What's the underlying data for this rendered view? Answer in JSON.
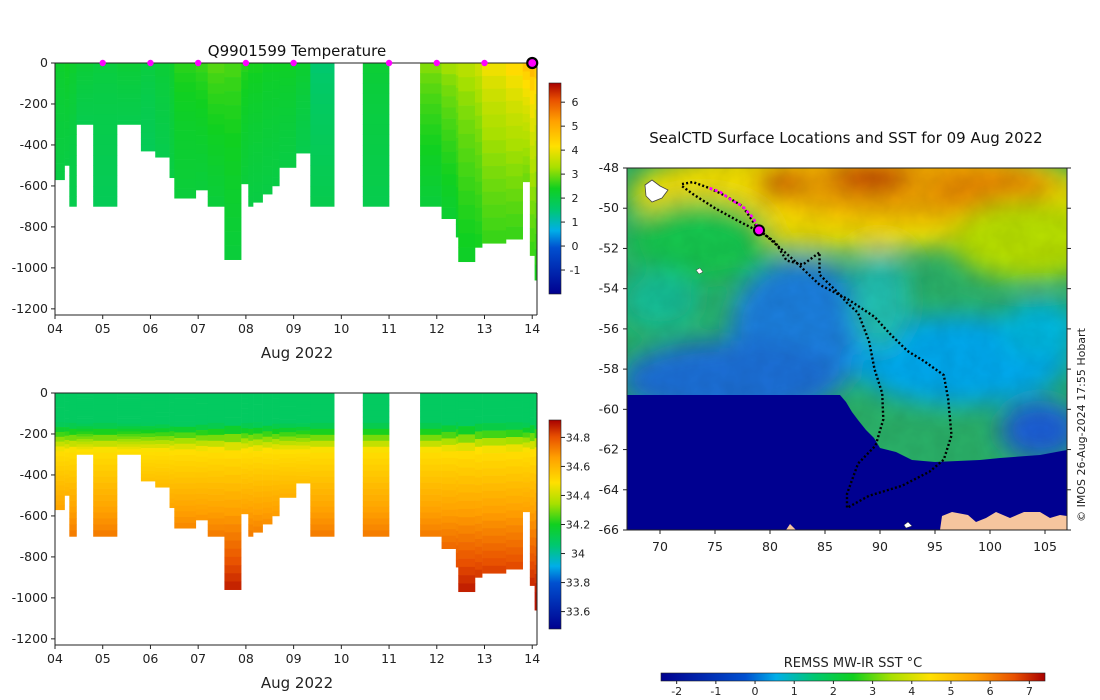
{
  "temperature_panel": {
    "title": "Q9901599  Temperature",
    "xlabel": "Aug 2022",
    "xticks": [
      "04",
      "05",
      "06",
      "07",
      "08",
      "09",
      "10",
      "11",
      "12",
      "13",
      "14"
    ],
    "yticks": [
      "0",
      "-200",
      "-400",
      "-600",
      "-800",
      "-1000",
      "-1200"
    ],
    "colorbar_ticks": [
      "6",
      "5",
      "4",
      "3",
      "2",
      "1",
      "0",
      "-1"
    ]
  },
  "salinity_panel": {
    "xlabel": "Aug 2022",
    "xticks": [
      "04",
      "05",
      "06",
      "07",
      "08",
      "09",
      "10",
      "11",
      "12",
      "13",
      "14"
    ],
    "yticks": [
      "0",
      "-200",
      "-400",
      "-600",
      "-800",
      "-1000",
      "-1200"
    ],
    "colorbar_ticks": [
      "34.8",
      "34.6",
      "34.4",
      "34.2",
      "34",
      "33.8",
      "33.6"
    ]
  },
  "map_panel": {
    "title": "SealCTD Surface Locations and SST for 09 Aug 2022",
    "xticks": [
      "70",
      "75",
      "80",
      "85",
      "90",
      "95",
      "100",
      "105"
    ],
    "yticks": [
      "-48",
      "-50",
      "-52",
      "-54",
      "-56",
      "-58",
      "-60",
      "-62",
      "-64",
      "-66"
    ],
    "colorbar_label": "REMSS MW-IR SST °C",
    "colorbar_ticks": [
      "-2",
      "-1",
      "0",
      "1",
      "2",
      "3",
      "4",
      "5",
      "6",
      "7"
    ],
    "copyright": "© IMOS 26-Aug-2024 17:55 Hobart"
  },
  "chart_data": [
    {
      "type": "heatmap",
      "title": "Q9901599  Temperature",
      "xlabel": "Aug 2022",
      "ylabel": "",
      "xlim": [
        4,
        14.1
      ],
      "ylim": [
        -1230,
        0
      ],
      "colorbar_range": [
        -2,
        6.8
      ],
      "surface_markers_days": [
        5,
        6,
        7,
        8,
        9,
        11,
        12,
        13
      ],
      "current_marker_day": 14,
      "profiles": [
        {
          "t0": 4.0,
          "t1": 4.2,
          "depth": 570,
          "surf": 2.3,
          "deep": 2.0
        },
        {
          "t0": 4.2,
          "t1": 4.3,
          "depth": 500,
          "surf": 2.4,
          "deep": 2.0
        },
        {
          "t0": 4.3,
          "t1": 4.45,
          "depth": 700,
          "surf": 2.3,
          "deep": 1.9
        },
        {
          "t0": 4.45,
          "t1": 4.8,
          "depth": 300,
          "surf": 2.2,
          "deep": 1.9
        },
        {
          "t0": 4.8,
          "t1": 5.3,
          "depth": 700,
          "surf": 2.1,
          "deep": 1.8
        },
        {
          "t0": 5.3,
          "t1": 5.8,
          "depth": 300,
          "surf": 2.2,
          "deep": 1.9
        },
        {
          "t0": 5.8,
          "t1": 6.1,
          "depth": 430,
          "surf": 2.1,
          "deep": 1.8
        },
        {
          "t0": 6.1,
          "t1": 6.4,
          "depth": 460,
          "surf": 2.2,
          "deep": 1.9
        },
        {
          "t0": 6.4,
          "t1": 6.5,
          "depth": 560,
          "surf": 2.3,
          "deep": 2.0
        },
        {
          "t0": 6.5,
          "t1": 6.95,
          "depth": 660,
          "surf": 2.6,
          "deep": 2.1
        },
        {
          "t0": 6.95,
          "t1": 7.2,
          "depth": 620,
          "surf": 2.7,
          "deep": 2.1
        },
        {
          "t0": 7.2,
          "t1": 7.55,
          "depth": 700,
          "surf": 2.9,
          "deep": 2.1
        },
        {
          "t0": 7.55,
          "t1": 7.9,
          "depth": 960,
          "surf": 2.8,
          "deep": 2.1
        },
        {
          "t0": 7.9,
          "t1": 8.05,
          "depth": 590,
          "surf": 2.6,
          "deep": 2.1
        },
        {
          "t0": 8.05,
          "t1": 8.15,
          "depth": 700,
          "surf": 2.5,
          "deep": 2.0
        },
        {
          "t0": 8.15,
          "t1": 8.35,
          "depth": 680,
          "surf": 2.5,
          "deep": 2.0
        },
        {
          "t0": 8.35,
          "t1": 8.55,
          "depth": 640,
          "surf": 2.4,
          "deep": 2.0
        },
        {
          "t0": 8.55,
          "t1": 8.7,
          "depth": 600,
          "surf": 2.4,
          "deep": 2.0
        },
        {
          "t0": 8.7,
          "t1": 9.05,
          "depth": 510,
          "surf": 2.4,
          "deep": 2.0
        },
        {
          "t0": 9.05,
          "t1": 9.35,
          "depth": 440,
          "surf": 2.3,
          "deep": 1.9
        },
        {
          "t0": 9.35,
          "t1": 9.85,
          "depth": 700,
          "surf": 1.5,
          "deep": 1.9
        },
        {
          "t0": 10.45,
          "t1": 11.0,
          "depth": 700,
          "surf": 2.2,
          "deep": 1.9
        },
        {
          "t0": 11.65,
          "t1": 12.1,
          "depth": 700,
          "surf": 3.2,
          "deep": 2.1
        },
        {
          "t0": 12.1,
          "t1": 12.4,
          "depth": 760,
          "surf": 3.4,
          "deep": 2.2
        },
        {
          "t0": 12.4,
          "t1": 12.45,
          "depth": 850,
          "surf": 3.5,
          "deep": 2.2
        },
        {
          "t0": 12.45,
          "t1": 12.8,
          "depth": 970,
          "surf": 3.6,
          "deep": 2.3
        },
        {
          "t0": 12.8,
          "t1": 12.95,
          "depth": 900,
          "surf": 3.8,
          "deep": 2.4
        },
        {
          "t0": 12.95,
          "t1": 13.45,
          "depth": 880,
          "surf": 4.2,
          "deep": 2.6
        },
        {
          "t0": 13.45,
          "t1": 13.8,
          "depth": 860,
          "surf": 4.5,
          "deep": 2.6
        },
        {
          "t0": 13.8,
          "t1": 13.95,
          "depth": 580,
          "surf": 4.9,
          "deep": 2.9
        },
        {
          "t0": 13.95,
          "t1": 14.05,
          "depth": 940,
          "surf": 5.1,
          "deep": 2.6
        },
        {
          "t0": 14.05,
          "t1": 14.1,
          "depth": 1060,
          "surf": 4.8,
          "deep": 2.4
        }
      ]
    },
    {
      "type": "heatmap",
      "title": "",
      "xlabel": "Aug 2022",
      "ylabel": "",
      "xlim": [
        4,
        14.1
      ],
      "ylim": [
        -1230,
        0
      ],
      "colorbar_range": [
        33.48,
        34.92
      ],
      "note": "salinity profiles share the time/depth structure of the temperature panel",
      "profiles": [
        {
          "t0": 4.0,
          "t1": 4.2,
          "depth": 570
        },
        {
          "t0": 4.2,
          "t1": 4.3,
          "depth": 500
        },
        {
          "t0": 4.3,
          "t1": 4.45,
          "depth": 700
        },
        {
          "t0": 4.45,
          "t1": 4.8,
          "depth": 300
        },
        {
          "t0": 4.8,
          "t1": 5.3,
          "depth": 700
        },
        {
          "t0": 5.3,
          "t1": 5.8,
          "depth": 300
        },
        {
          "t0": 5.8,
          "t1": 6.1,
          "depth": 430
        },
        {
          "t0": 6.1,
          "t1": 6.4,
          "depth": 460
        },
        {
          "t0": 6.4,
          "t1": 6.5,
          "depth": 560
        },
        {
          "t0": 6.5,
          "t1": 6.95,
          "depth": 660
        },
        {
          "t0": 6.95,
          "t1": 7.2,
          "depth": 620
        },
        {
          "t0": 7.2,
          "t1": 7.55,
          "depth": 700
        },
        {
          "t0": 7.55,
          "t1": 7.9,
          "depth": 960
        },
        {
          "t0": 7.9,
          "t1": 8.05,
          "depth": 590
        },
        {
          "t0": 8.05,
          "t1": 8.15,
          "depth": 700
        },
        {
          "t0": 8.15,
          "t1": 8.35,
          "depth": 680
        },
        {
          "t0": 8.35,
          "t1": 8.55,
          "depth": 640
        },
        {
          "t0": 8.55,
          "t1": 8.7,
          "depth": 600
        },
        {
          "t0": 8.7,
          "t1": 9.05,
          "depth": 510
        },
        {
          "t0": 9.05,
          "t1": 9.35,
          "depth": 440
        },
        {
          "t0": 9.35,
          "t1": 9.85,
          "depth": 700
        },
        {
          "t0": 10.45,
          "t1": 11.0,
          "depth": 700
        },
        {
          "t0": 11.65,
          "t1": 12.1,
          "depth": 700
        },
        {
          "t0": 12.1,
          "t1": 12.4,
          "depth": 760
        },
        {
          "t0": 12.4,
          "t1": 12.45,
          "depth": 850
        },
        {
          "t0": 12.45,
          "t1": 12.8,
          "depth": 970
        },
        {
          "t0": 12.8,
          "t1": 12.95,
          "depth": 900
        },
        {
          "t0": 12.95,
          "t1": 13.45,
          "depth": 880
        },
        {
          "t0": 13.45,
          "t1": 13.8,
          "depth": 860
        },
        {
          "t0": 13.8,
          "t1": 13.95,
          "depth": 580
        },
        {
          "t0": 13.95,
          "t1": 14.05,
          "depth": 940
        },
        {
          "t0": 14.05,
          "t1": 14.1,
          "depth": 1060
        }
      ]
    },
    {
      "type": "heatmap",
      "title": "SealCTD Surface Locations and SST for 09 Aug 2022",
      "xlim": [
        67,
        107
      ],
      "ylim": [
        -66,
        -48
      ],
      "xlabel": "",
      "ylabel": "",
      "colorbar_label": "REMSS MW-IR SST °C",
      "colorbar_range": [
        -2.4,
        7.4
      ],
      "track_lon_lat": [
        [
          72,
          -48.8
        ],
        [
          73,
          -48.7
        ],
        [
          74.5,
          -49.0
        ],
        [
          76,
          -49.4
        ],
        [
          77.5,
          -49.9
        ],
        [
          79,
          -51.1
        ],
        [
          80.5,
          -51.7
        ],
        [
          81.5,
          -52.6
        ],
        [
          83,
          -52.8
        ],
        [
          84.5,
          -52.2
        ],
        [
          84.5,
          -53.3
        ],
        [
          86,
          -54.1
        ],
        [
          87,
          -54.7
        ],
        [
          88,
          -55.2
        ],
        [
          89,
          -56.6
        ],
        [
          89.5,
          -58.0
        ],
        [
          90.2,
          -59.2
        ],
        [
          90.3,
          -60.5
        ],
        [
          89.6,
          -61.8
        ],
        [
          88,
          -62.7
        ],
        [
          87,
          -64.2
        ],
        [
          87,
          -64.9
        ],
        [
          89,
          -64.3
        ],
        [
          92,
          -63.8
        ],
        [
          94.5,
          -63.1
        ],
        [
          95.8,
          -62.5
        ],
        [
          96.5,
          -61.3
        ],
        [
          96.2,
          -59.5
        ],
        [
          95.8,
          -58.3
        ],
        [
          94,
          -57.6
        ],
        [
          92.5,
          -57.1
        ],
        [
          91,
          -56.3
        ],
        [
          89.5,
          -55.4
        ],
        [
          87,
          -54.5
        ],
        [
          84.5,
          -53.8
        ],
        [
          82,
          -52.5
        ],
        [
          79.5,
          -51.3
        ],
        [
          77,
          -50.6
        ],
        [
          75,
          -50.0
        ],
        [
          73,
          -49.3
        ],
        [
          72,
          -48.9
        ]
      ],
      "recent_track_lon_lat": [
        [
          74.5,
          -49.0
        ],
        [
          75.5,
          -49.2
        ],
        [
          76.5,
          -49.6
        ],
        [
          77.5,
          -49.9
        ],
        [
          78.5,
          -50.5
        ],
        [
          79,
          -51.1
        ]
      ],
      "current_position_lon_lat": [
        79,
        -51.1
      ]
    }
  ]
}
